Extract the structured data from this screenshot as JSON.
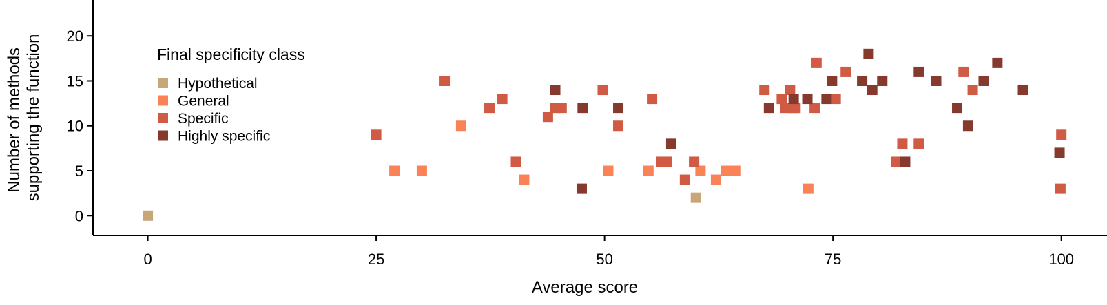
{
  "chart_data": {
    "type": "scatter",
    "title": "",
    "xlabel": "Average score",
    "ylabel_lines": [
      "Number of methods",
      "supporting the function"
    ],
    "xlim": [
      -6,
      105
    ],
    "ylim": [
      -2.2,
      24
    ],
    "xticks": [
      0,
      25,
      50,
      75,
      100
    ],
    "xtick_labels": [
      "0",
      "25",
      "50",
      "75",
      "100"
    ],
    "yticks": [
      0,
      5,
      10,
      15,
      20
    ],
    "ytick_labels": [
      "0",
      "5",
      "10",
      "15",
      "20"
    ],
    "grid": false,
    "marker": "square",
    "legend": {
      "title": "Final specificity class",
      "placement": "upper-left"
    },
    "series": [
      {
        "name": "Hypothetical",
        "color": "#C9A57A",
        "points": [
          [
            0,
            0
          ],
          [
            60,
            2
          ]
        ]
      },
      {
        "name": "General",
        "color": "#F98256",
        "points": [
          [
            27,
            5
          ],
          [
            30,
            5
          ],
          [
            34.3,
            10
          ],
          [
            41.2,
            4
          ],
          [
            50.4,
            5
          ],
          [
            54.8,
            5
          ],
          [
            60.5,
            5
          ],
          [
            62.2,
            4
          ],
          [
            63.3,
            5
          ],
          [
            64.3,
            5
          ],
          [
            72.3,
            3
          ]
        ]
      },
      {
        "name": "Specific",
        "color": "#D05A43",
        "points": [
          [
            25,
            9
          ],
          [
            32.5,
            15
          ],
          [
            37.4,
            12
          ],
          [
            38.8,
            13
          ],
          [
            40.3,
            6
          ],
          [
            43.8,
            11
          ],
          [
            44.6,
            12
          ],
          [
            45.3,
            12
          ],
          [
            49.8,
            14
          ],
          [
            51.5,
            10
          ],
          [
            55.2,
            13
          ],
          [
            56.2,
            6
          ],
          [
            56.8,
            6
          ],
          [
            58.8,
            4
          ],
          [
            59.8,
            6
          ],
          [
            67.5,
            14
          ],
          [
            69.4,
            13
          ],
          [
            69.8,
            12
          ],
          [
            70.3,
            14
          ],
          [
            70.6,
            12
          ],
          [
            70.9,
            12
          ],
          [
            73,
            12
          ],
          [
            73.2,
            17
          ],
          [
            75.3,
            13
          ],
          [
            76.4,
            16
          ],
          [
            81.9,
            6
          ],
          [
            82.6,
            8
          ],
          [
            84.4,
            8
          ],
          [
            89.3,
            16
          ],
          [
            90.3,
            14
          ],
          [
            99.9,
            3
          ],
          [
            100,
            9
          ]
        ]
      },
      {
        "name": "Highly specific",
        "color": "#853A2D",
        "points": [
          [
            44.6,
            14
          ],
          [
            47.5,
            3
          ],
          [
            47.6,
            12
          ],
          [
            51.5,
            12
          ],
          [
            57.3,
            8
          ],
          [
            68,
            12
          ],
          [
            70.7,
            13
          ],
          [
            72.2,
            13
          ],
          [
            74.3,
            13
          ],
          [
            74.9,
            15
          ],
          [
            78.2,
            15
          ],
          [
            78.9,
            18
          ],
          [
            79.3,
            14
          ],
          [
            80.4,
            15
          ],
          [
            82.9,
            6
          ],
          [
            84.4,
            16
          ],
          [
            86.3,
            15
          ],
          [
            88.6,
            12
          ],
          [
            89.8,
            10
          ],
          [
            91.5,
            15
          ],
          [
            93,
            17
          ],
          [
            95.8,
            14
          ],
          [
            99.8,
            7
          ]
        ]
      }
    ]
  }
}
